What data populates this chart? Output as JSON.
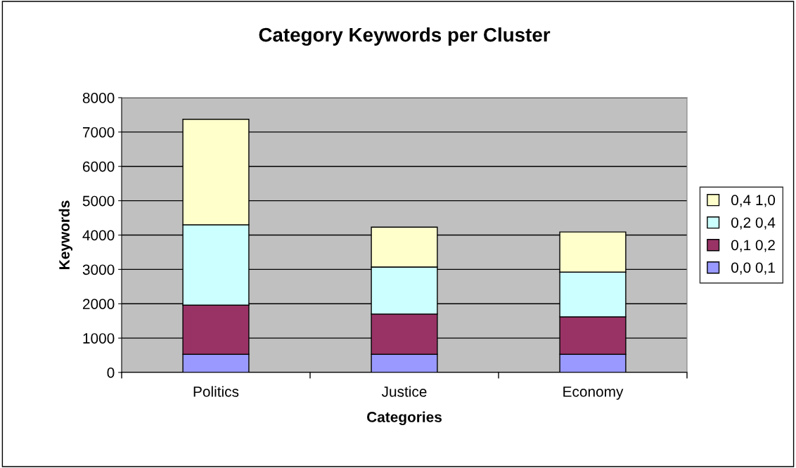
{
  "chart_data": {
    "type": "bar",
    "title": "Category Keywords per Cluster",
    "xlabel": "Categories",
    "ylabel": "Keywords",
    "categories": [
      "Politics",
      "Justice",
      "Economy"
    ],
    "stacked": true,
    "series": [
      {
        "name": "0,0 0,1",
        "color": "#9999ff",
        "values": [
          530,
          530,
          530
        ]
      },
      {
        "name": "0,1 0,2",
        "color": "#993366",
        "values": [
          1430,
          1170,
          1090
        ]
      },
      {
        "name": "0,2 0,4",
        "color": "#ccffff",
        "values": [
          2340,
          1370,
          1300
        ]
      },
      {
        "name": "0,4 1,0",
        "color": "#ffffcc",
        "values": [
          3070,
          1160,
          1170
        ]
      }
    ],
    "ylim": [
      0,
      8000
    ],
    "yticks": [
      0,
      1000,
      2000,
      3000,
      4000,
      5000,
      6000,
      7000,
      8000
    ],
    "grid": "y",
    "legend": "right"
  }
}
